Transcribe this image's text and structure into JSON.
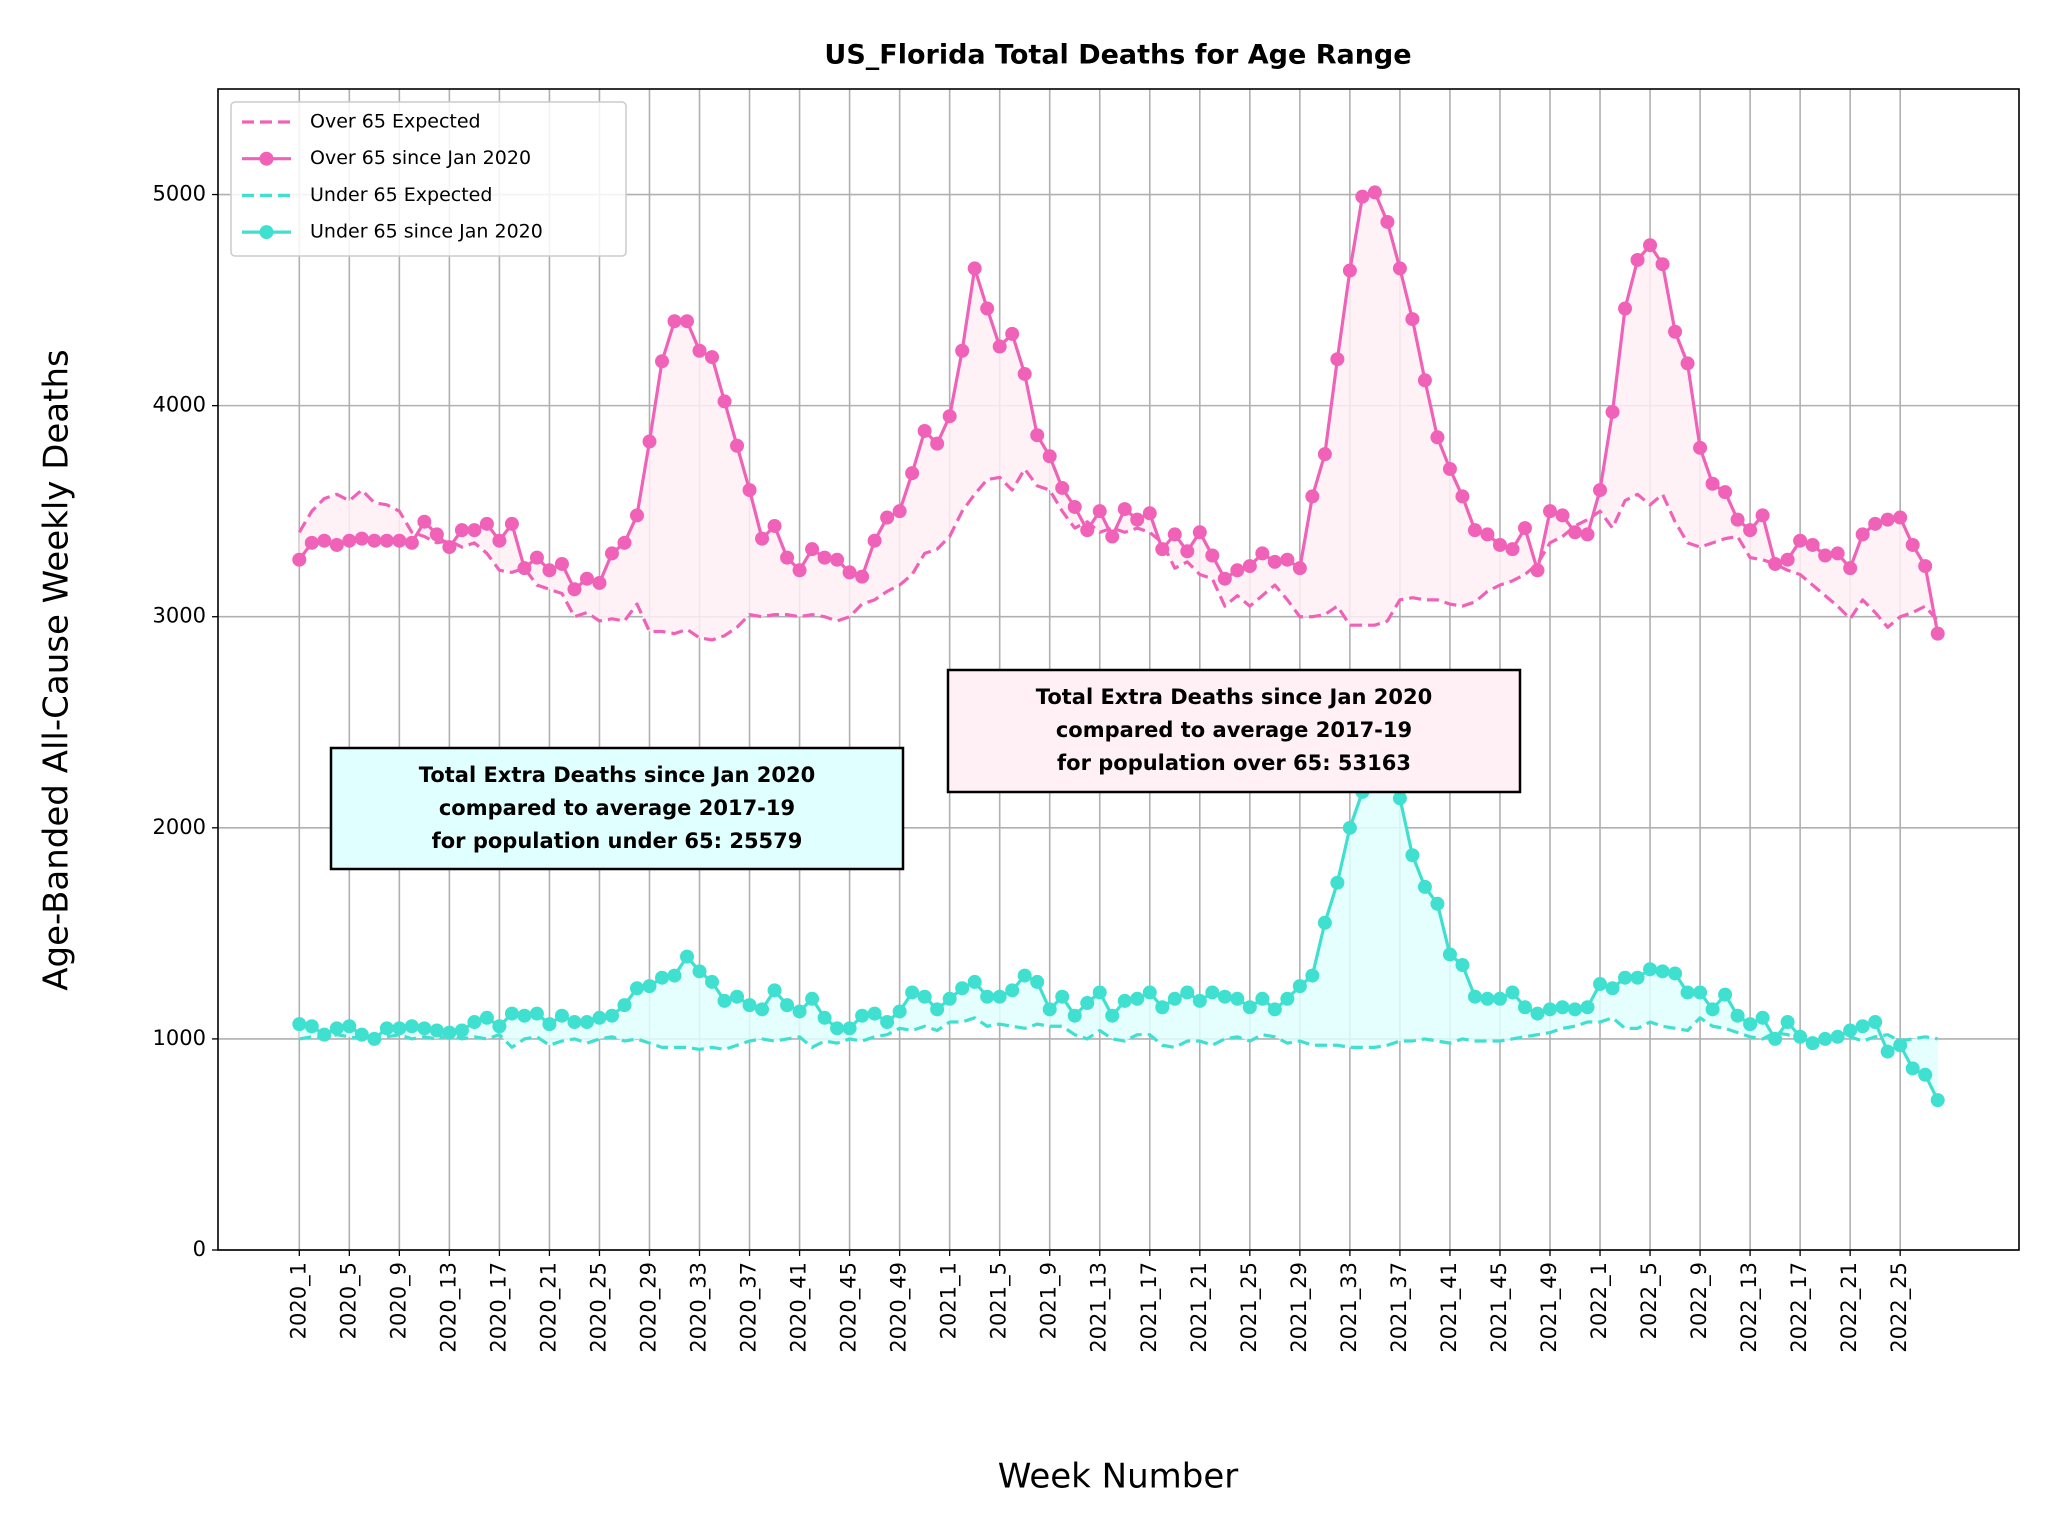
{
  "chart_data": {
    "type": "line",
    "title": "US_Florida Total Deaths for Age Range",
    "x_label": "Week Number",
    "y_label": "Age-Banded All-Cause Weekly Deaths",
    "categories": [
      "2020_1",
      null,
      null,
      null,
      "2020_5",
      null,
      null,
      null,
      "2020_9",
      null,
      null,
      null,
      "2020_13",
      null,
      null,
      null,
      "2020_17",
      null,
      null,
      null,
      "2020_21",
      null,
      null,
      null,
      "2020_25",
      null,
      null,
      null,
      "2020_29",
      null,
      null,
      null,
      "2020_33",
      null,
      null,
      null,
      "2020_37",
      null,
      null,
      null,
      "2020_41",
      null,
      null,
      null,
      "2020_45",
      null,
      null,
      null,
      "2020_49",
      null,
      null,
      null,
      "2021_1",
      null,
      null,
      null,
      "2021_5",
      null,
      null,
      null,
      "2021_9",
      null,
      null,
      null,
      "2021_13",
      null,
      null,
      null,
      "2021_17",
      null,
      null,
      null,
      "2021_21",
      null,
      null,
      null,
      "2021_25",
      null,
      null,
      null,
      "2021_29",
      null,
      null,
      null,
      "2021_33",
      null,
      null,
      null,
      "2021_37",
      null,
      null,
      null,
      "2021_41",
      null,
      null,
      null,
      "2021_45",
      null,
      null,
      null,
      "2021_49",
      null,
      null,
      null,
      "2022_1",
      null,
      null,
      null,
      "2022_5",
      null,
      null,
      null,
      "2022_9",
      null,
      null,
      null,
      "2022_13",
      null,
      null,
      null,
      "2022_17",
      null,
      null,
      null,
      "2022_21",
      null,
      null,
      null,
      "2022_25",
      null,
      null,
      null
    ],
    "series": [
      {
        "name": "Over 65 Expected",
        "color": "#f062b8",
        "style": "dashed",
        "marker": false,
        "values": [
          3400,
          3500,
          3560,
          3580,
          3550,
          3600,
          3540,
          3530,
          3500,
          3400,
          3380,
          3350,
          3360,
          3330,
          3350,
          3300,
          3220,
          3210,
          3230,
          3150,
          3130,
          3110,
          3000,
          3020,
          2980,
          2990,
          2980,
          3060,
          2930,
          2930,
          2920,
          2940,
          2900,
          2890,
          2910,
          2950,
          3010,
          3000,
          3010,
          3010,
          3000,
          3010,
          3000,
          2980,
          3000,
          3060,
          3080,
          3120,
          3150,
          3200,
          3300,
          3320,
          3380,
          3500,
          3580,
          3650,
          3660,
          3600,
          3700,
          3620,
          3600,
          3500,
          3420,
          3450,
          3400,
          3420,
          3400,
          3420,
          3400,
          3350,
          3230,
          3260,
          3200,
          3180,
          3050,
          3100,
          3050,
          3100,
          3150,
          3080,
          3000,
          3000,
          3010,
          3050,
          2960,
          2960,
          2960,
          2980,
          3080,
          3090,
          3080,
          3080,
          3060,
          3050,
          3070,
          3120,
          3150,
          3170,
          3200,
          3250,
          3350,
          3380,
          3430,
          3460,
          3500,
          3420,
          3550,
          3580,
          3530,
          3580,
          3450,
          3350,
          3330,
          3350,
          3370,
          3380,
          3280,
          3270,
          3250,
          3220,
          3200,
          3150,
          3100,
          3050,
          2990,
          3080,
          3020,
          2950,
          3000,
          3020,
          3050,
          2980
        ]
      },
      {
        "name": "Over 65 since Jan 2020",
        "color": "#f062b8",
        "style": "solid",
        "marker": true,
        "fill": "#fff0f5",
        "values": [
          3270,
          3350,
          3360,
          3340,
          3360,
          3370,
          3360,
          3360,
          3360,
          3350,
          3450,
          3390,
          3330,
          3410,
          3410,
          3440,
          3360,
          3440,
          3230,
          3280,
          3220,
          3250,
          3130,
          3180,
          3160,
          3300,
          3350,
          3480,
          3830,
          4210,
          4400,
          4400,
          4260,
          4230,
          4020,
          3810,
          3600,
          3370,
          3430,
          3280,
          3220,
          3320,
          3280,
          3270,
          3210,
          3190,
          3360,
          3470,
          3500,
          3680,
          3880,
          3820,
          3950,
          4260,
          4650,
          4460,
          4280,
          4340,
          4150,
          3860,
          3760,
          3610,
          3520,
          3410,
          3500,
          3380,
          3510,
          3460,
          3490,
          3320,
          3390,
          3310,
          3400,
          3290,
          3180,
          3220,
          3240,
          3300,
          3260,
          3270,
          3230,
          3570,
          3770,
          4220,
          4640,
          4990,
          5010,
          4870,
          4650,
          4410,
          4120,
          3850,
          3700,
          3570,
          3410,
          3390,
          3340,
          3320,
          3420,
          3220,
          3500,
          3480,
          3400,
          3390,
          3600,
          3970,
          4460,
          4690,
          4760,
          4670,
          4350,
          4200,
          3800,
          3630,
          3590,
          3460,
          3410,
          3480,
          3250,
          3270,
          3360,
          3340,
          3290,
          3300,
          3230,
          3390,
          3440,
          3460,
          3470,
          3340,
          3240,
          2920
        ]
      },
      {
        "name": "Under 65 Expected",
        "color": "#40e0d0",
        "style": "dashed",
        "marker": false,
        "values": [
          1000,
          1010,
          1000,
          1020,
          1010,
          1000,
          990,
          1010,
          1020,
          1000,
          1010,
          1000,
          1020,
          1000,
          1010,
          1000,
          1020,
          960,
          1000,
          1010,
          970,
          990,
          1000,
          980,
          1000,
          1010,
          990,
          1000,
          980,
          960,
          960,
          960,
          950,
          960,
          950,
          970,
          990,
          1000,
          990,
          1000,
          1010,
          960,
          990,
          980,
          1000,
          990,
          1010,
          1020,
          1050,
          1040,
          1060,
          1040,
          1080,
          1080,
          1100,
          1060,
          1070,
          1060,
          1050,
          1070,
          1060,
          1060,
          1020,
          1000,
          1040,
          1000,
          990,
          1020,
          1020,
          970,
          960,
          990,
          990,
          970,
          1000,
          1010,
          990,
          1020,
          1010,
          980,
          990,
          970,
          970,
          970,
          960,
          960,
          960,
          970,
          990,
          990,
          1000,
          990,
          980,
          1000,
          990,
          990,
          990,
          1000,
          1010,
          1020,
          1030,
          1050,
          1060,
          1080,
          1080,
          1100,
          1050,
          1050,
          1080,
          1060,
          1050,
          1040,
          1100,
          1060,
          1050,
          1030,
          1010,
          1000,
          1030,
          1020,
          1000,
          990,
          1000,
          1010,
          1010,
          990,
          1010,
          1020,
          990,
          1000,
          1010,
          1000
        ]
      },
      {
        "name": "Under 65 since Jan 2020",
        "color": "#40e0d0",
        "style": "solid",
        "marker": true,
        "fill": "#e0ffff",
        "values": [
          1070,
          1060,
          1020,
          1050,
          1060,
          1020,
          1000,
          1050,
          1050,
          1060,
          1050,
          1040,
          1030,
          1040,
          1080,
          1100,
          1060,
          1120,
          1110,
          1120,
          1070,
          1110,
          1080,
          1080,
          1100,
          1110,
          1160,
          1240,
          1250,
          1290,
          1300,
          1390,
          1320,
          1270,
          1180,
          1200,
          1160,
          1140,
          1230,
          1160,
          1130,
          1190,
          1100,
          1050,
          1050,
          1110,
          1120,
          1080,
          1130,
          1220,
          1200,
          1140,
          1190,
          1240,
          1270,
          1200,
          1200,
          1230,
          1300,
          1270,
          1140,
          1200,
          1110,
          1170,
          1220,
          1110,
          1180,
          1190,
          1220,
          1150,
          1190,
          1220,
          1180,
          1220,
          1200,
          1190,
          1150,
          1190,
          1140,
          1190,
          1250,
          1300,
          1550,
          1740,
          2000,
          2170,
          2300,
          2250,
          2140,
          1870,
          1720,
          1640,
          1400,
          1350,
          1200,
          1190,
          1190,
          1220,
          1150,
          1120,
          1140,
          1150,
          1140,
          1150,
          1260,
          1240,
          1290,
          1290,
          1330,
          1320,
          1310,
          1220,
          1220,
          1140,
          1210,
          1110,
          1070,
          1100,
          1000,
          1080,
          1010,
          980,
          1000,
          1010,
          1040,
          1060,
          1080,
          940,
          970,
          860,
          830,
          710
        ]
      }
    ],
    "ylim": [
      0,
      5500
    ],
    "yticks": [
      0,
      1000,
      2000,
      3000,
      4000,
      5000
    ],
    "grid": true,
    "legend": "upper left",
    "annotations": [
      {
        "lines": [
          "Total Extra Deaths since Jan 2020",
          "compared to average 2017-19",
          "for population under 65: 25579"
        ],
        "color": "#e0ffff"
      },
      {
        "lines": [
          "Total Extra Deaths since Jan 2020",
          "compared to average 2017-19",
          "for population over 65: 53163"
        ],
        "color": "#fff0f5"
      }
    ]
  }
}
